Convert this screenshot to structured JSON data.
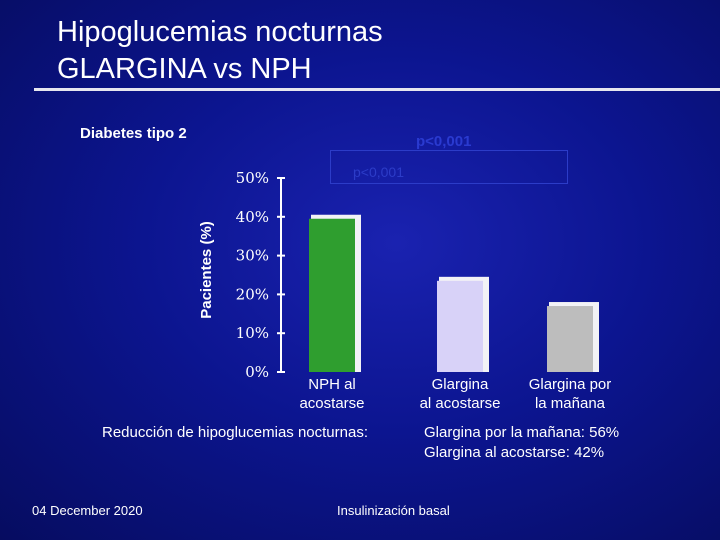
{
  "slide": {
    "title_line1": "Hipoglucemias nocturnas",
    "title_line2": "GLARGINA vs NPH",
    "subtitle": "Diabetes tipo 2",
    "pvalue_top": "p<0,001",
    "pvalue_box": "p<0,001",
    "note_label": "Reducción de hipoglucemias nocturnas:",
    "note_line1": "Glargina por la mañana: 56%",
    "note_line2": "Glargina al acostarse: 42%",
    "footer_date": "04 December 2020",
    "footer_topic": "Insulinización basal"
  },
  "chart_data": {
    "type": "bar",
    "title": "",
    "xlabel": "",
    "ylabel": "Pacientes (%)",
    "ylim": [
      0,
      50
    ],
    "yticks": [
      0,
      10,
      20,
      30,
      40,
      50
    ],
    "ytick_labels": [
      "0%",
      "10%",
      "20%",
      "30%",
      "40%",
      "50%"
    ],
    "categories": [
      [
        "NPH al",
        "acostarse"
      ],
      [
        "Glargina",
        "al acostarse"
      ],
      [
        "Glargina por",
        "la mañana"
      ]
    ],
    "values": [
      39.5,
      23.5,
      17.0
    ],
    "colors": [
      "#2f9e2f",
      "#d8d2f8",
      "#bdbdbd"
    ]
  }
}
